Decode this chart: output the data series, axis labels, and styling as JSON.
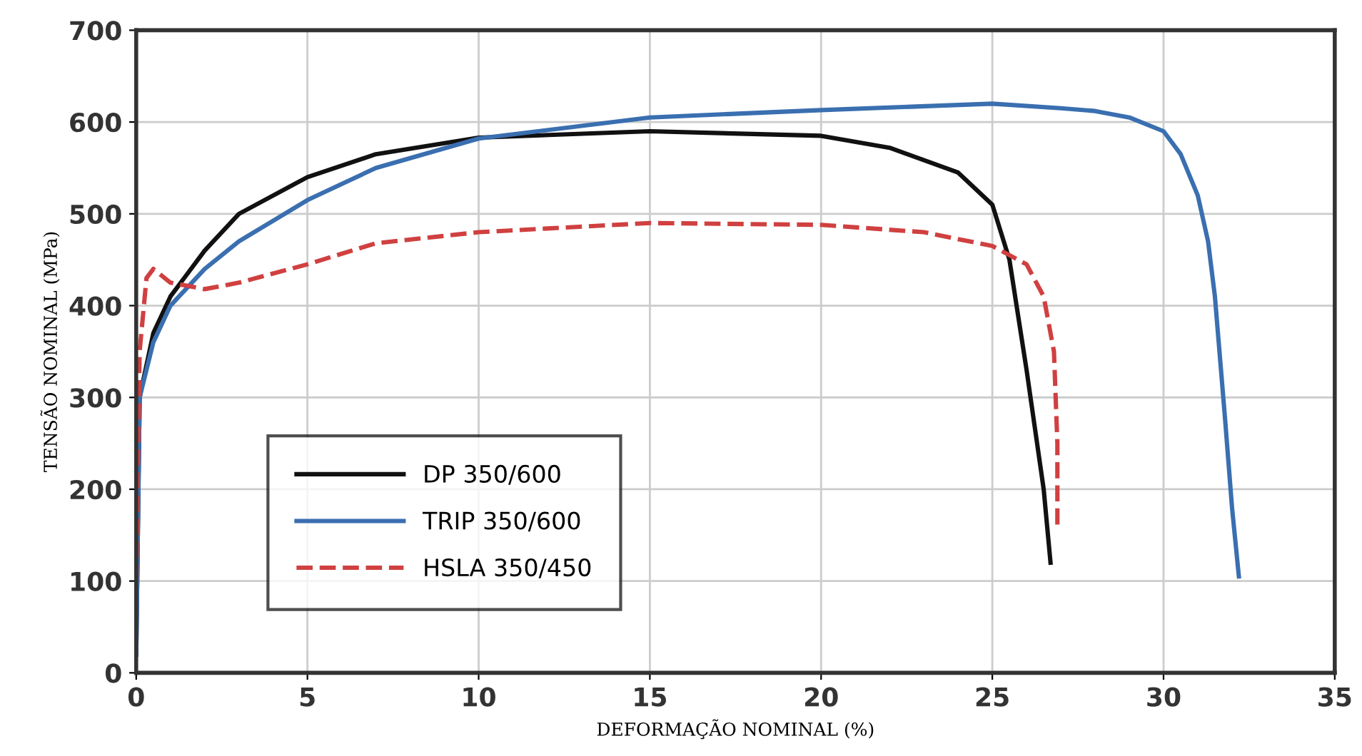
{
  "chart_data": {
    "type": "line",
    "xlabel": "DEFORMAÇÃO NOMINAL (%)",
    "ylabel": "TENSÃO NOMINAL (MPa)",
    "xlim": [
      0,
      35
    ],
    "xticks": [
      0,
      5,
      10,
      15,
      20,
      25,
      30,
      35
    ],
    "ylim": [
      0,
      700
    ],
    "yticks": [
      0,
      100,
      200,
      300,
      400,
      500,
      600,
      700
    ],
    "grid": true,
    "legend": "bottom left",
    "marker": "none",
    "series": [
      {
        "name": "DP 350/600",
        "color": "#111111",
        "line_style": "solid",
        "x": [
          0,
          0.1,
          0.5,
          1,
          2,
          3,
          5,
          7,
          10,
          15,
          20,
          22,
          24,
          25,
          25.5,
          26,
          26.5,
          26.7
        ],
        "values": [
          20,
          300,
          370,
          410,
          460,
          500,
          540,
          565,
          583,
          590,
          585,
          572,
          545,
          510,
          450,
          330,
          200,
          120
        ]
      },
      {
        "name": "TRIP 350/600",
        "color": "#3a6fb0",
        "line_style": "solid",
        "x": [
          0,
          0.1,
          0.5,
          1,
          2,
          3,
          5,
          7,
          10,
          15,
          20,
          25,
          27,
          28,
          29,
          30,
          30.5,
          31,
          31.3,
          31.5,
          31.8,
          32,
          32.2
        ],
        "values": [
          20,
          300,
          360,
          400,
          440,
          470,
          515,
          550,
          582,
          605,
          613,
          620,
          615,
          612,
          605,
          590,
          565,
          520,
          470,
          410,
          275,
          180,
          105
        ]
      },
      {
        "name": "HSLA 350/450",
        "color": "#d04040",
        "line_style": "dashed",
        "x": [
          0,
          0.1,
          0.3,
          0.5,
          1,
          2,
          3,
          5,
          7,
          10,
          15,
          20,
          23,
          25,
          26,
          26.5,
          26.8,
          26.9,
          26.9
        ],
        "values": [
          100,
          350,
          430,
          440,
          425,
          418,
          425,
          445,
          468,
          480,
          490,
          488,
          480,
          465,
          445,
          410,
          350,
          250,
          160
        ]
      }
    ]
  }
}
